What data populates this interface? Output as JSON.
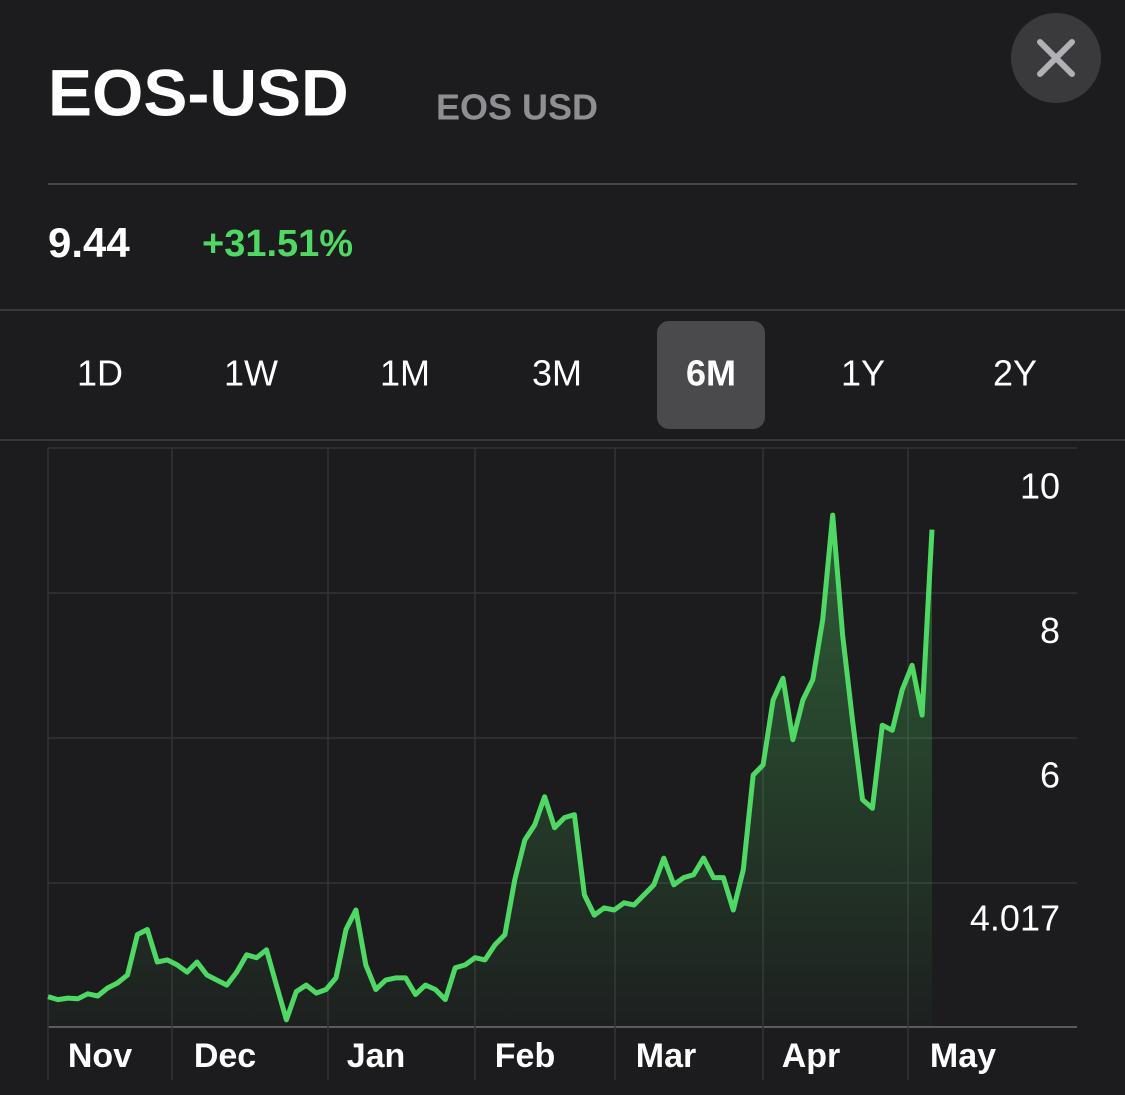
{
  "header": {
    "symbol": "EOS-USD",
    "name": "EOS USD"
  },
  "quote": {
    "price": "9.44",
    "change": "+31.51%"
  },
  "ranges": {
    "labels": [
      "1D",
      "1W",
      "1M",
      "3M",
      "6M",
      "1Y",
      "2Y"
    ],
    "selected": 4
  },
  "chart_data": {
    "type": "line",
    "color": "#4fd964",
    "x_labels": [
      "Nov",
      "Dec",
      "Jan",
      "Feb",
      "Mar",
      "Apr",
      "May"
    ],
    "values": [
      2.97,
      2.93,
      2.95,
      2.94,
      3.01,
      2.98,
      3.09,
      3.16,
      3.27,
      3.83,
      3.9,
      3.45,
      3.48,
      3.41,
      3.31,
      3.45,
      3.27,
      3.2,
      3.13,
      3.31,
      3.55,
      3.51,
      3.62,
      3.13,
      2.65,
      3.04,
      3.13,
      3.02,
      3.07,
      3.23,
      3.9,
      4.17,
      3.41,
      3.07,
      3.2,
      3.23,
      3.23,
      3.0,
      3.13,
      3.07,
      2.93,
      3.37,
      3.41,
      3.51,
      3.48,
      3.69,
      3.83,
      4.59,
      5.14,
      5.35,
      5.74,
      5.31,
      5.45,
      5.49,
      4.38,
      4.1,
      4.2,
      4.17,
      4.27,
      4.24,
      4.38,
      4.52,
      4.89,
      4.52,
      4.62,
      4.66,
      4.89,
      4.62,
      4.62,
      4.17,
      4.73,
      6.04,
      6.18,
      7.08,
      7.38,
      6.53,
      7.08,
      7.36,
      8.19,
      9.64,
      7.98,
      6.8,
      5.7,
      5.58,
      6.73,
      6.66,
      7.22,
      7.56,
      6.87,
      9.44
    ],
    "ylim": [
      2.55,
      10.57
    ],
    "yticks": [
      10,
      8,
      6,
      4.017
    ]
  }
}
